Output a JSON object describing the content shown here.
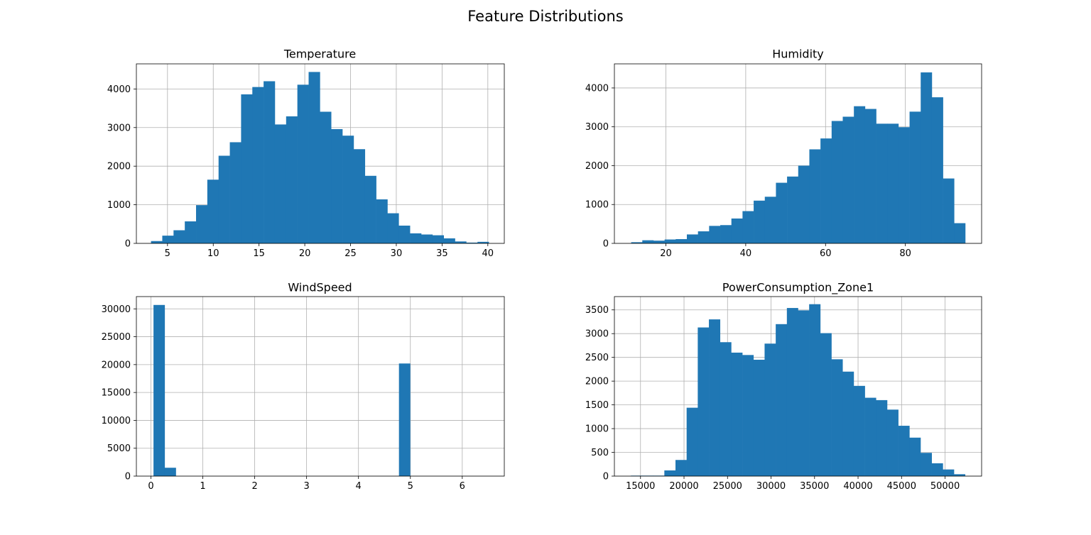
{
  "figure": {
    "title": "Feature Distributions",
    "bar_color": "#1f77b4",
    "grid_color": "#b0b0b0"
  },
  "chart_data": [
    {
      "type": "bar",
      "subtype": "histogram",
      "title": "Temperature",
      "xlabel": "",
      "ylabel": "",
      "xlim": [
        1.6,
        41.8
      ],
      "ylim": [
        0,
        4650
      ],
      "bin_start": 3.2,
      "bin_width": 1.23,
      "values": [
        60,
        200,
        340,
        570,
        990,
        1650,
        2270,
        2620,
        3860,
        4050,
        4200,
        3080,
        3290,
        4110,
        4440,
        3410,
        2960,
        2790,
        2440,
        1750,
        1140,
        780,
        460,
        260,
        230,
        210,
        130,
        50,
        20,
        40
      ],
      "xticks": [
        5,
        10,
        15,
        20,
        25,
        30,
        35,
        40
      ],
      "yticks": [
        0,
        1000,
        2000,
        3000,
        4000
      ],
      "grid": true,
      "legend": "none"
    },
    {
      "type": "bar",
      "subtype": "histogram",
      "title": "Humidity",
      "xlabel": "",
      "ylabel": "",
      "xlim": [
        7.1,
        99.1
      ],
      "ylim": [
        0,
        4620
      ],
      "bin_start": 11.3,
      "bin_width": 2.79,
      "values": [
        30,
        80,
        70,
        100,
        110,
        230,
        310,
        450,
        470,
        640,
        830,
        1100,
        1200,
        1560,
        1720,
        2000,
        2420,
        2700,
        3150,
        3260,
        3530,
        3460,
        3080,
        3080,
        2990,
        3390,
        4400,
        3760,
        1670,
        520
      ],
      "xticks": [
        20,
        40,
        60,
        80
      ],
      "yticks": [
        0,
        1000,
        2000,
        3000,
        4000
      ],
      "grid": true,
      "legend": "none"
    },
    {
      "type": "bar",
      "subtype": "histogram",
      "title": "WindSpeed",
      "xlabel": "",
      "ylabel": "",
      "xlim": [
        -0.28,
        6.81
      ],
      "ylim": [
        0,
        32200
      ],
      "bin_start": 0.05,
      "bin_width": 0.215,
      "values": [
        30700,
        1500,
        0,
        0,
        0,
        0,
        0,
        0,
        0,
        0,
        0,
        0,
        0,
        0,
        0,
        0,
        0,
        0,
        0,
        0,
        0,
        0,
        20200,
        0,
        0,
        0,
        0,
        0,
        0,
        0
      ],
      "xticks": [
        0,
        1,
        2,
        3,
        4,
        5,
        6
      ],
      "yticks": [
        0,
        5000,
        10000,
        15000,
        20000,
        25000,
        30000
      ],
      "grid": true,
      "legend": "none"
    },
    {
      "type": "bar",
      "subtype": "histogram",
      "title": "PowerConsumption_Zone1",
      "xlabel": "",
      "ylabel": "",
      "xlim": [
        12000,
        54200
      ],
      "ylim": [
        0,
        3780
      ],
      "bin_start": 13900,
      "bin_width": 1280,
      "values": [
        10,
        10,
        10,
        120,
        340,
        1440,
        3130,
        3300,
        2820,
        2600,
        2550,
        2450,
        2790,
        3200,
        3540,
        3490,
        3620,
        3010,
        2460,
        2200,
        1900,
        1650,
        1600,
        1400,
        1060,
        810,
        490,
        270,
        140,
        40
      ],
      "xticks": [
        15000,
        20000,
        25000,
        30000,
        35000,
        40000,
        45000,
        50000
      ],
      "yticks": [
        0,
        500,
        1000,
        1500,
        2000,
        2500,
        3000,
        3500
      ],
      "grid": true,
      "legend": "none"
    }
  ]
}
